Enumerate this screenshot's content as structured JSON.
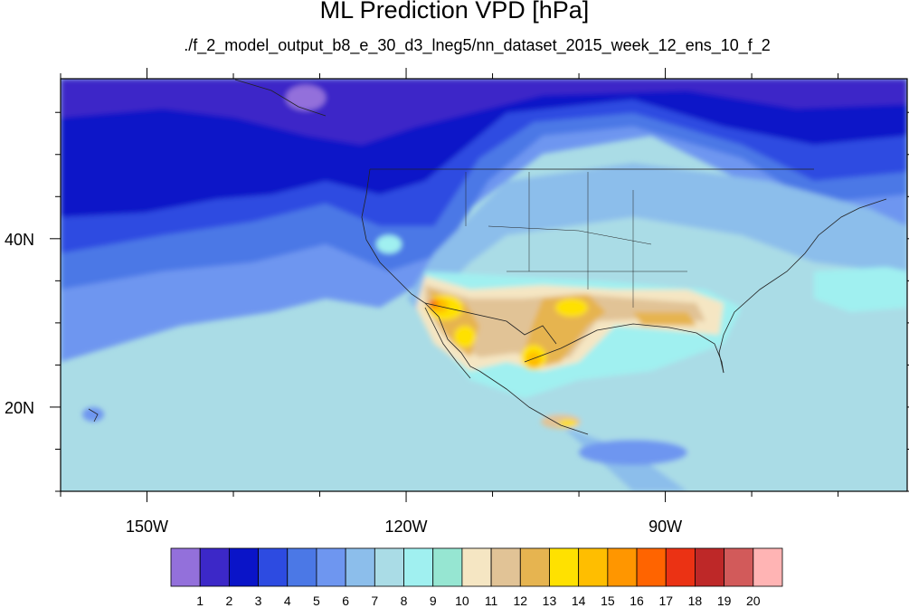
{
  "title": "ML Prediction VPD [hPa]",
  "subtitle": "./f_2_model_output_b8_e_30_d3_lneg5/nn_dataset_2015_week_12_ens_10_f_2",
  "map": {
    "projection": "cylindrical-equidistant",
    "lon_range": [
      -160,
      -62
    ],
    "lat_range": [
      10,
      59
    ],
    "x_ticks": [
      {
        "lon": -150,
        "label": "150W"
      },
      {
        "lon": -120,
        "label": "120W"
      },
      {
        "lon": -90,
        "label": "90W"
      }
    ],
    "y_ticks": [
      {
        "lat": 40,
        "label": "40N"
      },
      {
        "lat": 20,
        "label": "20N"
      }
    ]
  },
  "colorbar": {
    "colors": [
      "#9370db",
      "#3c28c8",
      "#0a14c8",
      "#2d4be1",
      "#4b78e6",
      "#6e96f0",
      "#8cbeeb",
      "#aadce6",
      "#a0f0f0",
      "#96e6d2",
      "#f5e6c3",
      "#e1c396",
      "#e6b450",
      "#ffe100",
      "#ffbe00",
      "#ff9600",
      "#ff6400",
      "#eb3214",
      "#be2828",
      "#d25a5a",
      "#ffb4b4"
    ],
    "labels": [
      "1",
      "2",
      "3",
      "4",
      "5",
      "6",
      "7",
      "8",
      "9",
      "10",
      "11",
      "12",
      "13",
      "14",
      "15",
      "16",
      "17",
      "18",
      "19",
      "20"
    ]
  }
}
